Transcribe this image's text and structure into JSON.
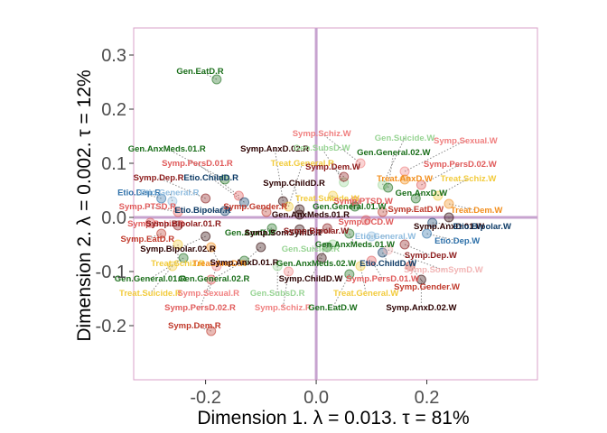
{
  "chart_data": {
    "type": "scatter",
    "xlabel": "Dimension 1.   λ = 0.013.  τ = 81%",
    "ylabel": "Dimension 2.   λ = 0.002.  τ = 12%",
    "xlim": [
      -0.33,
      0.4
    ],
    "ylim": [
      -0.3,
      0.35
    ],
    "x_ticks": [
      -0.2,
      0.0,
      0.2
    ],
    "x_tick_labels": [
      "-0.2",
      "0.0",
      "0.2"
    ],
    "y_ticks": [
      -0.2,
      -0.1,
      0.0,
      0.1,
      0.2,
      0.3
    ],
    "y_tick_labels": [
      "-0.2",
      "-0.1",
      "0.0",
      "0.1",
      "0.2",
      "0.3"
    ],
    "grid": false,
    "reference_lines": {
      "x": 0,
      "y": 0,
      "color": "#c7a3cf"
    },
    "frame_color": "#d8a2c8",
    "series": [
      {
        "points": [
          {
            "label": "Gen.EatD.R",
            "x": -0.18,
            "y": 0.255,
            "color": "#1a6e1a"
          },
          {
            "label": "Gen.AnxMeds.01.R",
            "x": -0.165,
            "y": 0.07,
            "color": "#1a6e1a"
          },
          {
            "label": "Symp.AnxD.02.R",
            "x": -0.06,
            "y": 0.03,
            "color": "#2b0000"
          },
          {
            "label": "Symp.PersD.01.R",
            "x": -0.14,
            "y": 0.04,
            "color": "#e05a5a"
          },
          {
            "label": "Treat.General.R",
            "x": -0.05,
            "y": 0.02,
            "color": "#f2cb3c"
          },
          {
            "label": "Symp.Dep.R",
            "x": -0.2,
            "y": 0.035,
            "color": "#8b1a1a"
          },
          {
            "label": "Etio.ChildD.R",
            "x": -0.13,
            "y": 0.028,
            "color": "#0d3b66"
          },
          {
            "label": "Symp.ChildD.R",
            "x": -0.03,
            "y": 0.015,
            "color": "#2b0000"
          },
          {
            "label": "Etio.Dep.R",
            "x": -0.28,
            "y": 0.035,
            "color": "#2c6fa8"
          },
          {
            "label": "Etio.General.R",
            "x": -0.26,
            "y": 0.03,
            "color": "#8fbcdf"
          },
          {
            "label": "Symp.PTSD.R",
            "x": -0.25,
            "y": 0.01,
            "color": "#e05a5a"
          },
          {
            "label": "Etio.Bipolar.R",
            "x": -0.165,
            "y": 0.012,
            "color": "#0d3b66"
          },
          {
            "label": "Symp.Gender.R",
            "x": -0.09,
            "y": 0.01,
            "color": "#c0392b"
          },
          {
            "label": "Symp.Schiz.R",
            "x": -0.3,
            "y": -0.01,
            "color": "#e05a5a"
          },
          {
            "label": "Symp.Bipolar.01.R",
            "x": -0.25,
            "y": -0.015,
            "color": "#8b1a1a"
          },
          {
            "label": "Symp.EatD.R",
            "x": -0.28,
            "y": -0.03,
            "color": "#c0392b"
          },
          {
            "label": "Gen.AnxD.R",
            "x": -0.08,
            "y": -0.02,
            "color": "#1a6e1a"
          },
          {
            "label": "Symp.SomSymD.R",
            "x": -0.03,
            "y": -0.022,
            "color": "#2b0000"
          },
          {
            "label": "Symp.Bipolar.02.R",
            "x": -0.2,
            "y": -0.035,
            "color": "#2b0000"
          },
          {
            "label": "Gen.Suicide.R",
            "x": 0.03,
            "y": -0.05,
            "color": "#98d494"
          },
          {
            "label": "Treat.Schiz.R",
            "x": -0.25,
            "y": -0.05,
            "color": "#f2cb3c"
          },
          {
            "label": "Treat.AnxD.R",
            "x": -0.19,
            "y": -0.055,
            "color": "#f28e1c"
          },
          {
            "label": "Symp.AnxD.01.R",
            "x": -0.1,
            "y": -0.055,
            "color": "#2b0000"
          },
          {
            "label": "Gen.AnxMeds.02.W",
            "x": 0.02,
            "y": -0.055,
            "color": "#1a6e1a"
          },
          {
            "label": "Etio.ChildD.W",
            "x": 0.12,
            "y": -0.065,
            "color": "#0d3b66"
          },
          {
            "label": "Gen.General.01.R",
            "x": -0.24,
            "y": -0.075,
            "color": "#1a6e1a"
          },
          {
            "label": "Gen.General.02.R",
            "x": -0.13,
            "y": -0.08,
            "color": "#1a6e1a"
          },
          {
            "label": "Treat.Suicide.R",
            "x": -0.26,
            "y": -0.09,
            "color": "#f2cb3c"
          },
          {
            "label": "Symp.Sexual.R",
            "x": -0.18,
            "y": -0.09,
            "color": "#f08080"
          },
          {
            "label": "Gen.SubsD.R",
            "x": -0.07,
            "y": -0.09,
            "color": "#98d494"
          },
          {
            "label": "Symp.ChildD.W",
            "x": 0.01,
            "y": -0.075,
            "color": "#2b0000"
          },
          {
            "label": "Symp.PersD.01.W",
            "x": 0.1,
            "y": -0.08,
            "color": "#e05a5a"
          },
          {
            "label": "Treat.General.W",
            "x": 0.08,
            "y": -0.09,
            "color": "#f2cb3c"
          },
          {
            "label": "Symp.PersD.02.R",
            "x": -0.19,
            "y": -0.115,
            "color": "#e05a5a"
          },
          {
            "label": "Symp.Schiz.R",
            "x": -0.05,
            "y": -0.1,
            "color": "#f08080"
          },
          {
            "label": "Gen.EatD.W",
            "x": 0.06,
            "y": -0.105,
            "color": "#1a6e1a"
          },
          {
            "label": "Symp.AnxD.02.W",
            "x": 0.19,
            "y": -0.115,
            "color": "#2b0000"
          },
          {
            "label": "Symp.Gender.W",
            "x": 0.17,
            "y": -0.09,
            "color": "#c0392b"
          },
          {
            "label": "Symp.Dem.R",
            "x": -0.19,
            "y": -0.21,
            "color": "#c0392b"
          },
          {
            "label": "Symp.Schiz.W",
            "x": 0.08,
            "y": 0.1,
            "color": "#f08080"
          },
          {
            "label": "Gen.SubsD.W",
            "x": 0.05,
            "y": 0.065,
            "color": "#98d494"
          },
          {
            "label": "Symp.Dem.W",
            "x": 0.05,
            "y": 0.075,
            "color": "#8b1a1a"
          },
          {
            "label": "Gen.Suicide.W",
            "x": 0.12,
            "y": 0.06,
            "color": "#98d494"
          },
          {
            "label": "Gen.General.02.W",
            "x": 0.13,
            "y": 0.055,
            "color": "#1a6e1a"
          },
          {
            "label": "Symp.Sexual.W",
            "x": 0.16,
            "y": 0.085,
            "color": "#f08080"
          },
          {
            "label": "Symp.PersD.02.W",
            "x": 0.19,
            "y": 0.06,
            "color": "#e05a5a"
          },
          {
            "label": "Treat.AnxD.W",
            "x": 0.16,
            "y": 0.07,
            "color": "#f28e1c"
          },
          {
            "label": "Treat.Schiz.W",
            "x": 0.22,
            "y": 0.04,
            "color": "#f2cb3c"
          },
          {
            "label": "Gen.AnxD.W",
            "x": 0.18,
            "y": 0.035,
            "color": "#1a6e1a"
          },
          {
            "label": "Treat.Suicide.W",
            "x": 0.03,
            "y": 0.04,
            "color": "#f2cb3c"
          },
          {
            "label": "Symp.PTSD.W",
            "x": 0.07,
            "y": 0.03,
            "color": "#e05a5a"
          },
          {
            "label": "Gen.General.01.W",
            "x": 0.07,
            "y": 0.02,
            "color": "#1a6e1a"
          },
          {
            "label": "Symp.EatD.W",
            "x": 0.12,
            "y": 0.01,
            "color": "#c0392b"
          },
          {
            "label": "Treat.Dem.W",
            "x": 0.24,
            "y": 0.025,
            "color": "#f28e1c"
          },
          {
            "label": "Gen.AnxMeds.01.R",
            "x": -0.03,
            "y": 0.005,
            "color": "#2b0000"
          },
          {
            "label": "Symp.OCD.W",
            "x": 0.09,
            "y": -0.005,
            "color": "#e05a5a"
          },
          {
            "label": "Symp.AnxD.01.W",
            "x": 0.24,
            "y": 0.0,
            "color": "#2b0000"
          },
          {
            "label": "Etio.Bipolar.W",
            "x": 0.21,
            "y": -0.01,
            "color": "#0d3b66"
          },
          {
            "label": "Symp.Bipolar.W",
            "x": 0.02,
            "y": -0.02,
            "color": "#8b1a1a"
          },
          {
            "label": "Gen.AnxMeds.01.W",
            "x": 0.06,
            "y": -0.03,
            "color": "#1a6e1a"
          },
          {
            "label": "Etio.Dep.W",
            "x": 0.2,
            "y": -0.03,
            "color": "#2c6fa8"
          },
          {
            "label": "Etio.General.W",
            "x": 0.1,
            "y": -0.035,
            "color": "#8fbcdf"
          },
          {
            "label": "Symp.Dep.W",
            "x": 0.16,
            "y": -0.05,
            "color": "#8b1a1a"
          },
          {
            "label": "Symp.SomSymD.W",
            "x": 0.13,
            "y": -0.06,
            "color": "#f2b5b5"
          }
        ]
      }
    ],
    "label_positions": [
      [
        -0.21,
        0.27
      ],
      [
        -0.27,
        0.127
      ],
      [
        -0.075,
        0.127
      ],
      [
        -0.215,
        0.1
      ],
      [
        -0.025,
        0.1
      ],
      [
        -0.285,
        0.073
      ],
      [
        -0.19,
        0.073
      ],
      [
        -0.04,
        0.063
      ],
      [
        -0.32,
        0.046
      ],
      [
        -0.265,
        0.046
      ],
      [
        -0.305,
        0.02
      ],
      [
        -0.205,
        0.013
      ],
      [
        -0.11,
        0.02
      ],
      [
        -0.29,
        -0.012
      ],
      [
        -0.24,
        -0.012
      ],
      [
        -0.305,
        -0.04
      ],
      [
        -0.12,
        -0.028
      ],
      [
        -0.06,
        -0.028
      ],
      [
        -0.25,
        -0.058
      ],
      [
        -0.01,
        -0.058
      ],
      [
        -0.25,
        -0.085
      ],
      [
        -0.175,
        -0.085
      ],
      [
        -0.13,
        -0.083
      ],
      [
        0.0,
        -0.085
      ],
      [
        0.13,
        -0.085
      ],
      [
        -0.3,
        -0.113
      ],
      [
        -0.185,
        -0.113
      ],
      [
        -0.3,
        -0.14
      ],
      [
        -0.195,
        -0.14
      ],
      [
        -0.07,
        -0.14
      ],
      [
        -0.01,
        -0.113
      ],
      [
        0.12,
        -0.113
      ],
      [
        0.09,
        -0.14
      ],
      [
        -0.21,
        -0.167
      ],
      [
        -0.06,
        -0.167
      ],
      [
        0.03,
        -0.167
      ],
      [
        0.19,
        -0.167
      ],
      [
        0.2,
        -0.128
      ],
      [
        -0.22,
        -0.2
      ],
      [
        0.01,
        0.155
      ],
      [
        0.01,
        0.128
      ],
      [
        0.03,
        0.093
      ],
      [
        0.16,
        0.147
      ],
      [
        0.14,
        0.12
      ],
      [
        0.27,
        0.142
      ],
      [
        0.26,
        0.098
      ],
      [
        0.16,
        0.072
      ],
      [
        0.275,
        0.072
      ],
      [
        0.19,
        0.045
      ],
      [
        0.02,
        0.035
      ],
      [
        0.085,
        0.03
      ],
      [
        0.06,
        0.02
      ],
      [
        0.18,
        0.015
      ],
      [
        0.29,
        0.013
      ],
      [
        -0.01,
        0.005
      ],
      [
        0.09,
        -0.008
      ],
      [
        0.24,
        -0.017
      ],
      [
        0.3,
        -0.017
      ],
      [
        0.0,
        -0.025
      ],
      [
        0.07,
        -0.05
      ],
      [
        0.255,
        -0.043
      ],
      [
        0.125,
        -0.035
      ],
      [
        0.207,
        -0.07
      ],
      [
        0.23,
        -0.097
      ]
    ],
    "label_drift": "no-overlap text placement; values are data-space label anchors"
  }
}
